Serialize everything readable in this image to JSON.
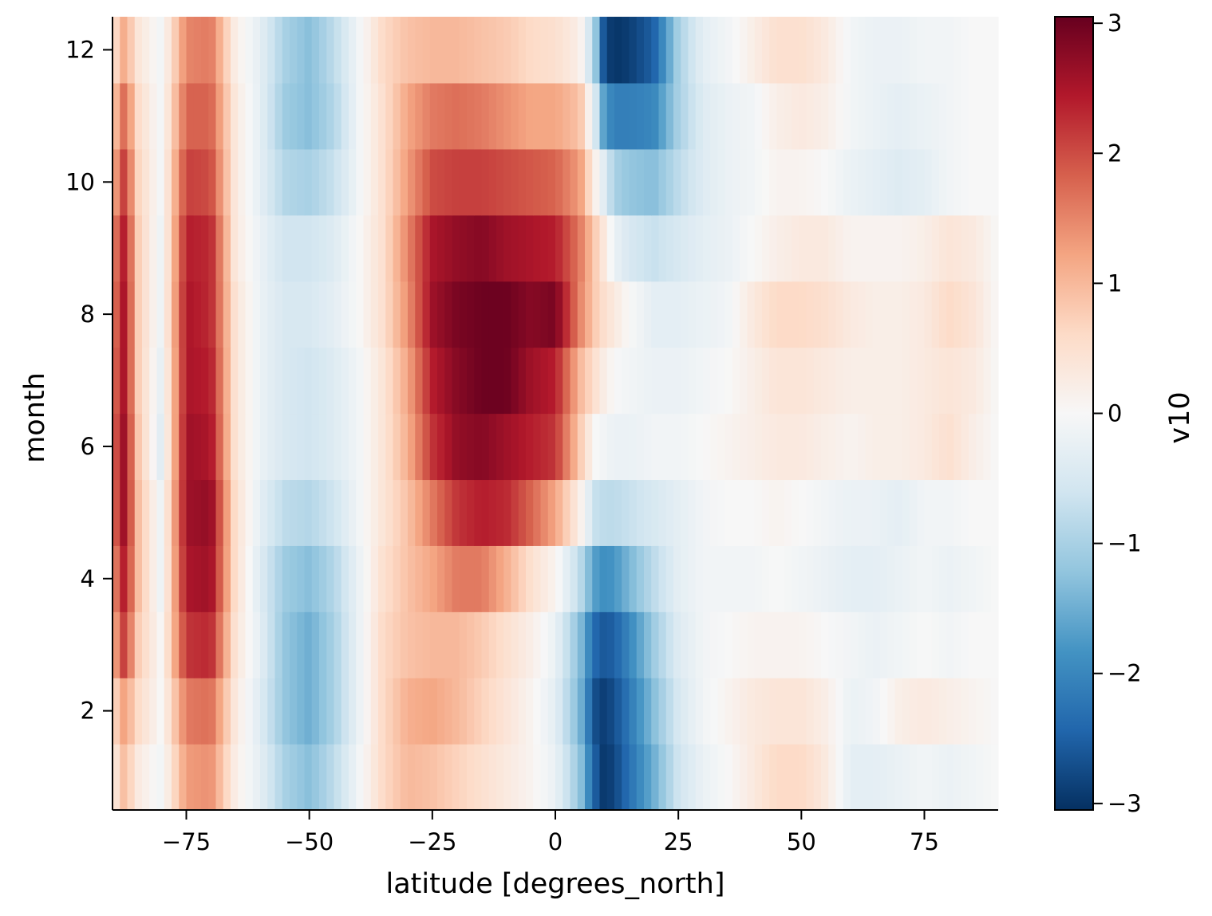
{
  "chart_data": {
    "type": "heatmap",
    "title": "",
    "xlabel": "latitude [degrees_north]",
    "ylabel": "month",
    "colorbar_label": "v10",
    "colormap": "RdBu_r",
    "colors": {
      "min": "#053061",
      "mid": "#f7f7f7",
      "max": "#67001f"
    },
    "xlim": [
      -90,
      90
    ],
    "ylim": [
      0.5,
      12.5
    ],
    "vlim": [
      -3.05,
      3.05
    ],
    "x_ticks": [
      -75,
      -50,
      -25,
      0,
      25,
      50,
      75
    ],
    "x_tick_labels": [
      "−75",
      "−50",
      "−25",
      "0",
      "25",
      "50",
      "75"
    ],
    "y_ticks": [
      2,
      4,
      6,
      8,
      10,
      12
    ],
    "y_tick_labels": [
      "2",
      "4",
      "6",
      "8",
      "10",
      "12"
    ],
    "colorbar_ticks": [
      3,
      2,
      1,
      0,
      -1,
      -2,
      -3
    ],
    "colorbar_tick_labels": [
      "3",
      "2",
      "1",
      "0",
      "−1",
      "−2",
      "−3"
    ],
    "months": [
      1,
      2,
      3,
      4,
      5,
      6,
      7,
      8,
      9,
      10,
      11,
      12
    ],
    "latitude_nodes": [
      -90,
      -87.5,
      -85,
      -80,
      -75,
      -70,
      -65,
      -60,
      -55,
      -50,
      -45,
      -40,
      -35,
      -30,
      -25,
      -20,
      -15,
      -10,
      -5,
      0,
      5,
      8,
      10,
      12,
      15,
      20,
      25,
      30,
      35,
      40,
      45,
      50,
      55,
      60,
      65,
      70,
      75,
      80,
      85,
      90
    ],
    "v10": [
      [
        0.2,
        1.0,
        0.3,
        -0.1,
        1.3,
        1.4,
        0.2,
        -0.3,
        -1.0,
        -1.3,
        -0.8,
        -0.1,
        0.6,
        1.0,
        0.9,
        0.7,
        0.5,
        0.3,
        0.1,
        -0.2,
        -1.2,
        -2.5,
        -3.0,
        -2.8,
        -2.3,
        -1.5,
        -0.6,
        -0.2,
        0.0,
        0.3,
        0.6,
        0.6,
        0.3,
        -0.3,
        -0.3,
        -0.2,
        -0.1,
        -0.2,
        -0.1,
        0.0
      ],
      [
        0.5,
        1.3,
        0.6,
        0.0,
        1.6,
        1.7,
        0.3,
        -0.4,
        -1.2,
        -1.5,
        -1.0,
        -0.2,
        0.6,
        1.1,
        1.2,
        1.0,
        0.7,
        0.4,
        0.1,
        -0.3,
        -1.4,
        -2.7,
        -2.9,
        -2.7,
        -2.2,
        -1.3,
        -0.5,
        -0.1,
        0.1,
        0.3,
        0.4,
        0.4,
        0.2,
        -0.2,
        -0.1,
        0.2,
        0.3,
        0.2,
        0.1,
        0.0
      ],
      [
        1.0,
        2.2,
        0.8,
        0.0,
        2.2,
        2.3,
        0.4,
        -0.3,
        -1.2,
        -1.5,
        -1.0,
        -0.2,
        0.6,
        0.9,
        1.0,
        1.0,
        0.8,
        0.5,
        0.2,
        -0.2,
        -1.3,
        -2.4,
        -2.6,
        -2.5,
        -2.0,
        -1.1,
        -0.4,
        -0.1,
        0.0,
        0.1,
        0.1,
        0.1,
        0.0,
        -0.1,
        -0.2,
        -0.1,
        0.0,
        -0.1,
        0.0,
        0.0
      ],
      [
        1.3,
        2.5,
        1.0,
        -0.2,
        2.5,
        2.6,
        0.5,
        -0.4,
        -1.1,
        -1.3,
        -0.9,
        -0.2,
        0.5,
        0.9,
        1.2,
        1.6,
        1.6,
        1.1,
        0.5,
        0.1,
        -0.8,
        -1.7,
        -1.9,
        -1.8,
        -1.4,
        -0.8,
        -0.3,
        -0.1,
        -0.1,
        -0.1,
        0.0,
        -0.1,
        -0.2,
        -0.3,
        -0.3,
        -0.2,
        -0.1,
        -0.2,
        -0.1,
        0.0
      ],
      [
        1.6,
        2.7,
        1.0,
        -0.2,
        2.6,
        2.7,
        0.5,
        -0.3,
        -0.8,
        -0.9,
        -0.6,
        -0.1,
        0.4,
        0.9,
        1.6,
        2.2,
        2.4,
        2.3,
        1.8,
        1.2,
        0.2,
        -0.7,
        -0.8,
        -0.8,
        -0.7,
        -0.5,
        -0.3,
        -0.1,
        0.0,
        0.0,
        0.1,
        0.0,
        -0.1,
        -0.2,
        -0.2,
        -0.3,
        -0.1,
        -0.1,
        0.0,
        0.0
      ],
      [
        1.7,
        2.7,
        0.9,
        -0.4,
        2.6,
        2.5,
        0.4,
        -0.2,
        -0.5,
        -0.6,
        -0.4,
        -0.1,
        0.4,
        1.1,
        2.2,
        2.7,
        2.8,
        2.6,
        2.4,
        2.2,
        0.8,
        0.0,
        -0.1,
        -0.2,
        -0.2,
        -0.1,
        -0.1,
        0.0,
        0.1,
        0.2,
        0.3,
        0.3,
        0.2,
        0.1,
        0.2,
        0.2,
        0.3,
        0.5,
        0.2,
        0.0
      ],
      [
        1.6,
        2.6,
        0.8,
        -0.3,
        2.5,
        2.4,
        0.4,
        -0.2,
        -0.5,
        -0.6,
        -0.4,
        -0.1,
        0.4,
        1.2,
        2.4,
        2.8,
        3.0,
        3.0,
        2.6,
        2.4,
        1.0,
        0.5,
        0.2,
        0.0,
        -0.1,
        -0.2,
        -0.2,
        -0.1,
        0.0,
        0.2,
        0.4,
        0.4,
        0.3,
        0.2,
        0.2,
        0.2,
        0.3,
        0.4,
        0.3,
        0.0
      ],
      [
        1.5,
        2.6,
        0.8,
        -0.2,
        2.5,
        2.3,
        0.4,
        -0.2,
        -0.5,
        -0.5,
        -0.3,
        0.0,
        0.5,
        1.4,
        2.6,
        2.9,
        3.0,
        3.0,
        2.8,
        2.9,
        1.5,
        0.8,
        0.5,
        0.3,
        0.0,
        -0.3,
        -0.3,
        -0.2,
        -0.1,
        0.3,
        0.6,
        0.6,
        0.5,
        0.3,
        0.2,
        0.2,
        0.3,
        0.6,
        0.4,
        0.0
      ],
      [
        1.4,
        2.5,
        0.8,
        -0.2,
        2.4,
        2.3,
        0.3,
        -0.2,
        -0.6,
        -0.6,
        -0.4,
        0.0,
        0.5,
        1.5,
        2.5,
        2.7,
        2.8,
        2.6,
        2.5,
        2.4,
        1.6,
        0.8,
        0.3,
        -0.2,
        -0.5,
        -0.7,
        -0.5,
        -0.3,
        -0.2,
        0.0,
        0.2,
        0.3,
        0.3,
        0.1,
        0.1,
        0.1,
        0.2,
        0.4,
        0.3,
        0.0
      ],
      [
        1.0,
        2.2,
        0.7,
        -0.1,
        2.1,
        2.0,
        0.3,
        -0.3,
        -0.9,
        -1.0,
        -0.7,
        -0.1,
        0.5,
        1.3,
        2.0,
        2.1,
        2.1,
        2.0,
        1.9,
        1.8,
        1.3,
        0.2,
        -0.4,
        -1.0,
        -1.2,
        -1.3,
        -0.8,
        -0.4,
        -0.2,
        -0.1,
        0.1,
        0.1,
        0.0,
        -0.2,
        -0.3,
        -0.4,
        -0.3,
        -0.1,
        0.0,
        0.0
      ],
      [
        0.7,
        1.8,
        0.6,
        -0.1,
        1.8,
        1.8,
        0.3,
        -0.3,
        -1.1,
        -1.3,
        -0.9,
        -0.1,
        0.5,
        1.2,
        1.6,
        1.7,
        1.6,
        1.4,
        1.2,
        1.2,
        0.9,
        -0.4,
        -1.8,
        -2.1,
        -2.1,
        -2.0,
        -1.0,
        -0.4,
        -0.2,
        -0.1,
        0.2,
        0.3,
        0.2,
        -0.1,
        -0.2,
        -0.3,
        -0.2,
        -0.1,
        0.0,
        0.0
      ],
      [
        0.4,
        1.2,
        0.4,
        -0.1,
        1.5,
        1.6,
        0.2,
        -0.3,
        -1.0,
        -1.3,
        -0.8,
        -0.1,
        0.6,
        0.9,
        1.0,
        1.0,
        0.9,
        0.8,
        0.6,
        0.5,
        0.2,
        -1.0,
        -2.8,
        -3.0,
        -2.9,
        -2.5,
        -1.0,
        -0.3,
        -0.1,
        0.2,
        0.5,
        0.5,
        0.3,
        -0.1,
        -0.2,
        -0.2,
        -0.1,
        -0.1,
        0.0,
        0.0
      ]
    ]
  }
}
